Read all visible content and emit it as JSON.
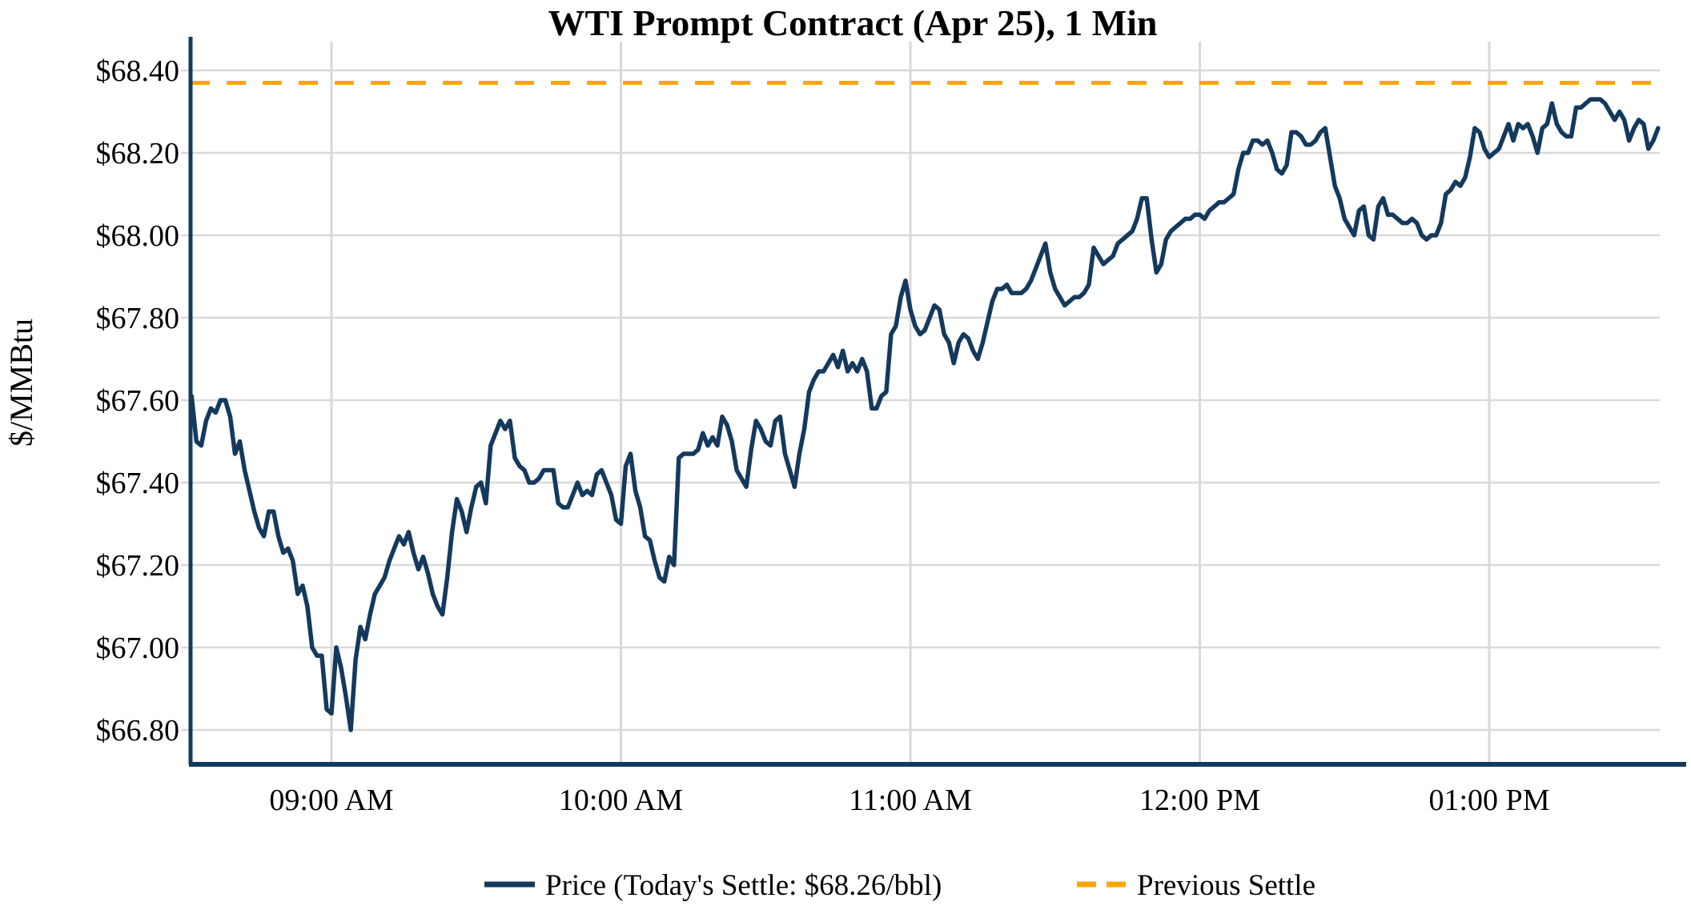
{
  "title": "WTI Prompt Contract (Apr 25), 1 Min",
  "y_axis": {
    "label": "$/MMBtu",
    "tick_labels": [
      "$66.80",
      "$67.00",
      "$67.20",
      "$67.40",
      "$67.60",
      "$67.80",
      "$68.00",
      "$68.20",
      "$68.40"
    ],
    "tick_values": [
      66.8,
      67.0,
      67.2,
      67.4,
      67.6,
      67.8,
      68.0,
      68.2,
      68.4
    ]
  },
  "x_axis": {
    "tick_labels": [
      "09:00 AM",
      "10:00 AM",
      "11:00 AM",
      "12:00 PM",
      "01:00 PM"
    ],
    "tick_minutes": [
      540,
      600,
      660,
      720,
      780
    ]
  },
  "legend": {
    "price_label": "Price (Today's Settle: $68.26/bbl)",
    "previous_settle_label": "Previous Settle"
  },
  "colors": {
    "price_line": "#14395d",
    "previous_settle": "#FFA500",
    "gridline": "#D9D9D9",
    "axis_spine": "#14395d",
    "text": "#000000",
    "background": "#FFFFFF"
  },
  "chart_data": {
    "type": "line",
    "title": "WTI Prompt Contract (Apr 25), 1 Min",
    "xlabel": "",
    "ylabel": "$/MMBtu",
    "grid": true,
    "legend_position": "bottom-center",
    "ylim": [
      66.73,
      68.47
    ],
    "x_start": "08:31",
    "x_end": "13:35",
    "interval_minutes": 1,
    "today_settle": 68.26,
    "previous_settle_value": 68.37,
    "series": [
      {
        "name": "Price (Today's Settle: $68.26/bbl)",
        "style": "solid",
        "color": "#14395d",
        "values": [
          67.61,
          67.5,
          67.49,
          67.55,
          67.58,
          67.57,
          67.6,
          67.6,
          67.56,
          67.47,
          67.5,
          67.43,
          67.38,
          67.33,
          67.29,
          67.27,
          67.33,
          67.33,
          67.27,
          67.23,
          67.24,
          67.21,
          67.13,
          67.15,
          67.1,
          67.0,
          66.98,
          66.98,
          66.85,
          66.84,
          67.0,
          66.95,
          66.88,
          66.8,
          66.97,
          67.05,
          67.02,
          67.08,
          67.13,
          67.15,
          67.17,
          67.21,
          67.24,
          67.27,
          67.25,
          67.28,
          67.23,
          67.19,
          67.22,
          67.18,
          67.13,
          67.1,
          67.08,
          67.17,
          67.28,
          67.36,
          67.33,
          67.28,
          67.34,
          67.39,
          67.4,
          67.35,
          67.49,
          67.52,
          67.55,
          67.53,
          67.55,
          67.46,
          67.44,
          67.43,
          67.4,
          67.4,
          67.41,
          67.43,
          67.43,
          67.43,
          67.35,
          67.34,
          67.34,
          67.37,
          67.4,
          67.37,
          67.38,
          67.37,
          67.42,
          67.43,
          67.4,
          67.37,
          67.31,
          67.3,
          67.44,
          67.47,
          67.38,
          67.34,
          67.27,
          67.26,
          67.21,
          67.17,
          67.16,
          67.22,
          67.2,
          67.46,
          67.47,
          67.47,
          67.47,
          67.48,
          67.52,
          67.49,
          67.51,
          67.49,
          67.56,
          67.54,
          67.5,
          67.43,
          67.41,
          67.39,
          67.48,
          67.55,
          67.53,
          67.5,
          67.49,
          67.55,
          67.56,
          67.47,
          67.43,
          67.39,
          67.47,
          67.53,
          67.62,
          67.65,
          67.67,
          67.67,
          67.69,
          67.71,
          67.68,
          67.72,
          67.67,
          67.69,
          67.67,
          67.7,
          67.67,
          67.58,
          67.58,
          67.61,
          67.62,
          67.76,
          67.78,
          67.85,
          67.89,
          67.82,
          67.78,
          67.76,
          67.77,
          67.8,
          67.83,
          67.82,
          67.76,
          67.74,
          67.69,
          67.74,
          67.76,
          67.75,
          67.72,
          67.7,
          67.74,
          67.79,
          67.84,
          67.87,
          67.87,
          67.88,
          67.86,
          67.86,
          67.86,
          67.87,
          67.89,
          67.92,
          67.95,
          67.98,
          67.91,
          67.87,
          67.85,
          67.83,
          67.84,
          67.85,
          67.85,
          67.86,
          67.88,
          67.97,
          67.95,
          67.93,
          67.94,
          67.95,
          67.98,
          67.99,
          68.0,
          68.01,
          68.04,
          68.09,
          68.09,
          67.99,
          67.91,
          67.93,
          67.99,
          68.01,
          68.02,
          68.03,
          68.04,
          68.04,
          68.05,
          68.05,
          68.04,
          68.06,
          68.07,
          68.08,
          68.08,
          68.09,
          68.1,
          68.16,
          68.2,
          68.2,
          68.23,
          68.23,
          68.22,
          68.23,
          68.2,
          68.16,
          68.15,
          68.17,
          68.25,
          68.25,
          68.24,
          68.22,
          68.22,
          68.23,
          68.25,
          68.26,
          68.19,
          68.12,
          68.09,
          68.04,
          68.02,
          68.0,
          68.06,
          68.07,
          68.0,
          67.99,
          68.07,
          68.09,
          68.05,
          68.05,
          68.04,
          68.03,
          68.03,
          68.04,
          68.03,
          68.0,
          67.99,
          68.0,
          68.0,
          68.03,
          68.1,
          68.11,
          68.13,
          68.12,
          68.14,
          68.19,
          68.26,
          68.25,
          68.21,
          68.19,
          68.2,
          68.21,
          68.24,
          68.27,
          68.23,
          68.27,
          68.26,
          68.27,
          68.24,
          68.2,
          68.26,
          68.27,
          68.32,
          68.27,
          68.25,
          68.24,
          68.24,
          68.31,
          68.31,
          68.32,
          68.33,
          68.33,
          68.33,
          68.32,
          68.3,
          68.28,
          68.3,
          68.28,
          68.23,
          68.26,
          68.28,
          68.27,
          68.21,
          68.23,
          68.26
        ]
      },
      {
        "name": "Previous Settle",
        "style": "dashed",
        "color": "#FFA500",
        "value": 68.37
      }
    ]
  }
}
